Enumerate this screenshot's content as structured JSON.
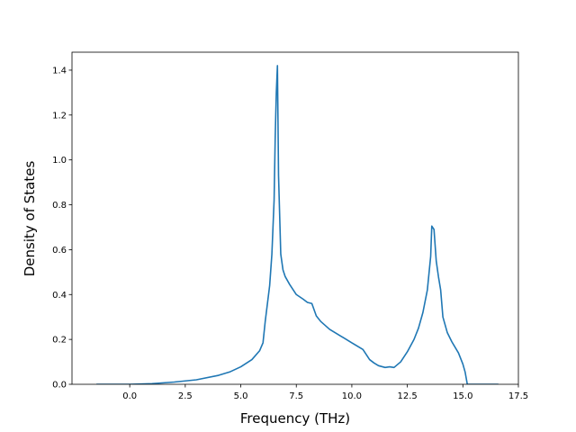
{
  "chart_data": {
    "type": "line",
    "title": "",
    "xlabel": "Frequency (THz)",
    "ylabel": "Density of States",
    "xlim": [
      -2.6,
      17.5
    ],
    "ylim": [
      0.0,
      1.48
    ],
    "xticks": [
      0.0,
      2.5,
      5.0,
      7.5,
      10.0,
      12.5,
      15.0,
      17.5
    ],
    "xtick_labels": [
      "0.0",
      "2.5",
      "5.0",
      "7.5",
      "10.0",
      "12.5",
      "15.0",
      "17.5"
    ],
    "yticks": [
      0.0,
      0.2,
      0.4,
      0.6,
      0.8,
      1.0,
      1.2,
      1.4
    ],
    "ytick_labels": [
      "0.0",
      "0.2",
      "0.4",
      "0.6",
      "0.8",
      "1.0",
      "1.2",
      "1.4"
    ],
    "grid": false,
    "legend": "none",
    "color": "#1f77b4",
    "series": [
      {
        "x": [
          -1.5,
          0.0,
          1.0,
          2.0,
          3.0,
          4.0,
          4.5,
          5.0,
          5.5,
          5.85,
          6.0,
          6.1,
          6.3,
          6.4,
          6.5,
          6.55,
          6.6,
          6.65,
          6.7,
          6.8,
          6.9,
          7.0,
          7.2,
          7.5,
          7.8,
          8.0,
          8.2,
          8.4,
          8.6,
          9.0,
          9.5,
          10.0,
          10.5,
          10.8,
          11.0,
          11.2,
          11.5,
          11.7,
          11.9,
          12.2,
          12.5,
          12.8,
          13.0,
          13.2,
          13.4,
          13.55,
          13.6,
          13.7,
          13.8,
          13.9,
          14.0,
          14.1,
          14.3,
          14.5,
          14.8,
          15.0,
          15.1,
          15.2,
          15.4,
          16.6
        ],
        "y": [
          0.0,
          0.0,
          0.003,
          0.01,
          0.02,
          0.04,
          0.055,
          0.078,
          0.11,
          0.15,
          0.185,
          0.28,
          0.44,
          0.58,
          0.82,
          1.1,
          1.3,
          1.42,
          0.93,
          0.58,
          0.51,
          0.48,
          0.445,
          0.4,
          0.38,
          0.365,
          0.36,
          0.305,
          0.28,
          0.245,
          0.215,
          0.185,
          0.155,
          0.11,
          0.095,
          0.083,
          0.075,
          0.078,
          0.075,
          0.1,
          0.145,
          0.2,
          0.25,
          0.32,
          0.42,
          0.57,
          0.705,
          0.69,
          0.55,
          0.48,
          0.42,
          0.3,
          0.23,
          0.19,
          0.14,
          0.09,
          0.055,
          0.0,
          0.0,
          0.0
        ]
      }
    ]
  }
}
